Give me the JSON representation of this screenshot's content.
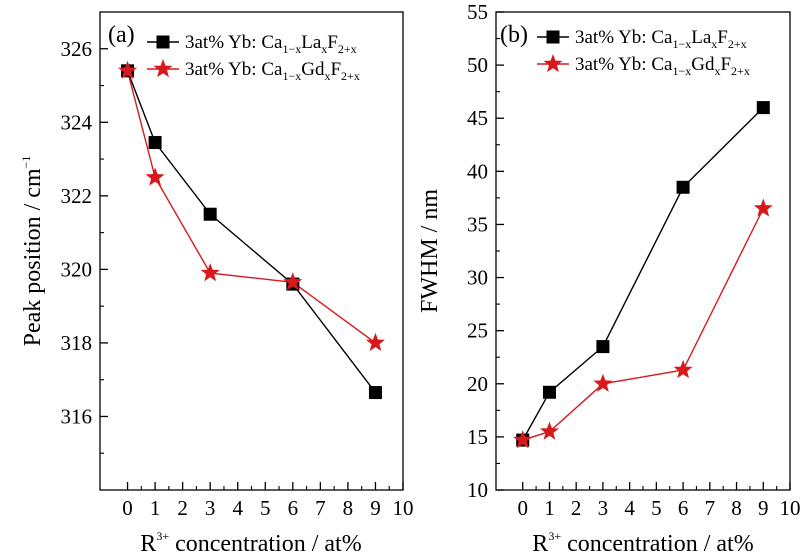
{
  "chart_data": [
    {
      "type": "line",
      "panel_label": "(a)",
      "xlabel_base": "R",
      "xlabel_sup": "3+",
      "xlabel_rest": " concentration / at%",
      "ylabel": "Peak position / cm",
      "ylabel_sup": "−1",
      "xlim": [
        -1,
        10
      ],
      "ylim": [
        314,
        327
      ],
      "x_ticks": [
        "0",
        "1",
        "2",
        "3",
        "4",
        "5",
        "6",
        "7",
        "8",
        "9",
        "10"
      ],
      "y_ticks": [
        "316",
        "318",
        "320",
        "322",
        "324",
        "326"
      ],
      "legend_position": "top-right",
      "series": [
        {
          "legend": {
            "prefix": "3at% Yb: Ca",
            "sub1": "1−x",
            "el": "La",
            "sub2": "x",
            "f": "F",
            "sub3": "2+x"
          },
          "color": "#000000",
          "marker": "square",
          "x": [
            0,
            1,
            3,
            6,
            9
          ],
          "y": [
            325.4,
            323.45,
            321.5,
            319.6,
            316.65
          ]
        },
        {
          "legend": {
            "prefix": "3at% Yb: Ca",
            "sub1": "1−x",
            "el": "Gd",
            "sub2": "x",
            "f": "F",
            "sub3": "2+x"
          },
          "color": "#d7191c",
          "marker": "star",
          "x": [
            0,
            1,
            3,
            6,
            9
          ],
          "y": [
            325.4,
            322.5,
            319.9,
            319.65,
            318
          ]
        }
      ]
    },
    {
      "type": "line",
      "panel_label": "(b)",
      "xlabel_base": "R",
      "xlabel_sup": "3+",
      "xlabel_rest": " concentration / at%",
      "ylabel": "FWHM / nm",
      "xlim": [
        -1,
        10
      ],
      "ylim": [
        10,
        55
      ],
      "x_ticks": [
        "0",
        "1",
        "2",
        "3",
        "4",
        "5",
        "6",
        "7",
        "8",
        "9",
        "10"
      ],
      "y_ticks": [
        "10",
        "15",
        "20",
        "25",
        "30",
        "35",
        "40",
        "45",
        "50",
        "55"
      ],
      "legend_position": "top-right",
      "series": [
        {
          "legend": {
            "prefix": "3at% Yb: Ca",
            "sub1": "1−x",
            "el": "La",
            "sub2": "x",
            "f": "F",
            "sub3": "2+x"
          },
          "color": "#000000",
          "marker": "square",
          "x": [
            0,
            1,
            3,
            6,
            9
          ],
          "y": [
            14.7,
            19.2,
            23.5,
            38.5,
            46
          ]
        },
        {
          "legend": {
            "prefix": "3at% Yb: Ca",
            "sub1": "1−x",
            "el": "Gd",
            "sub2": "x",
            "f": "F",
            "sub3": "2+x"
          },
          "color": "#d7191c",
          "marker": "star",
          "x": [
            0,
            1,
            3,
            6,
            9
          ],
          "y": [
            14.7,
            15.5,
            20,
            21.3,
            36.5
          ]
        }
      ]
    }
  ]
}
